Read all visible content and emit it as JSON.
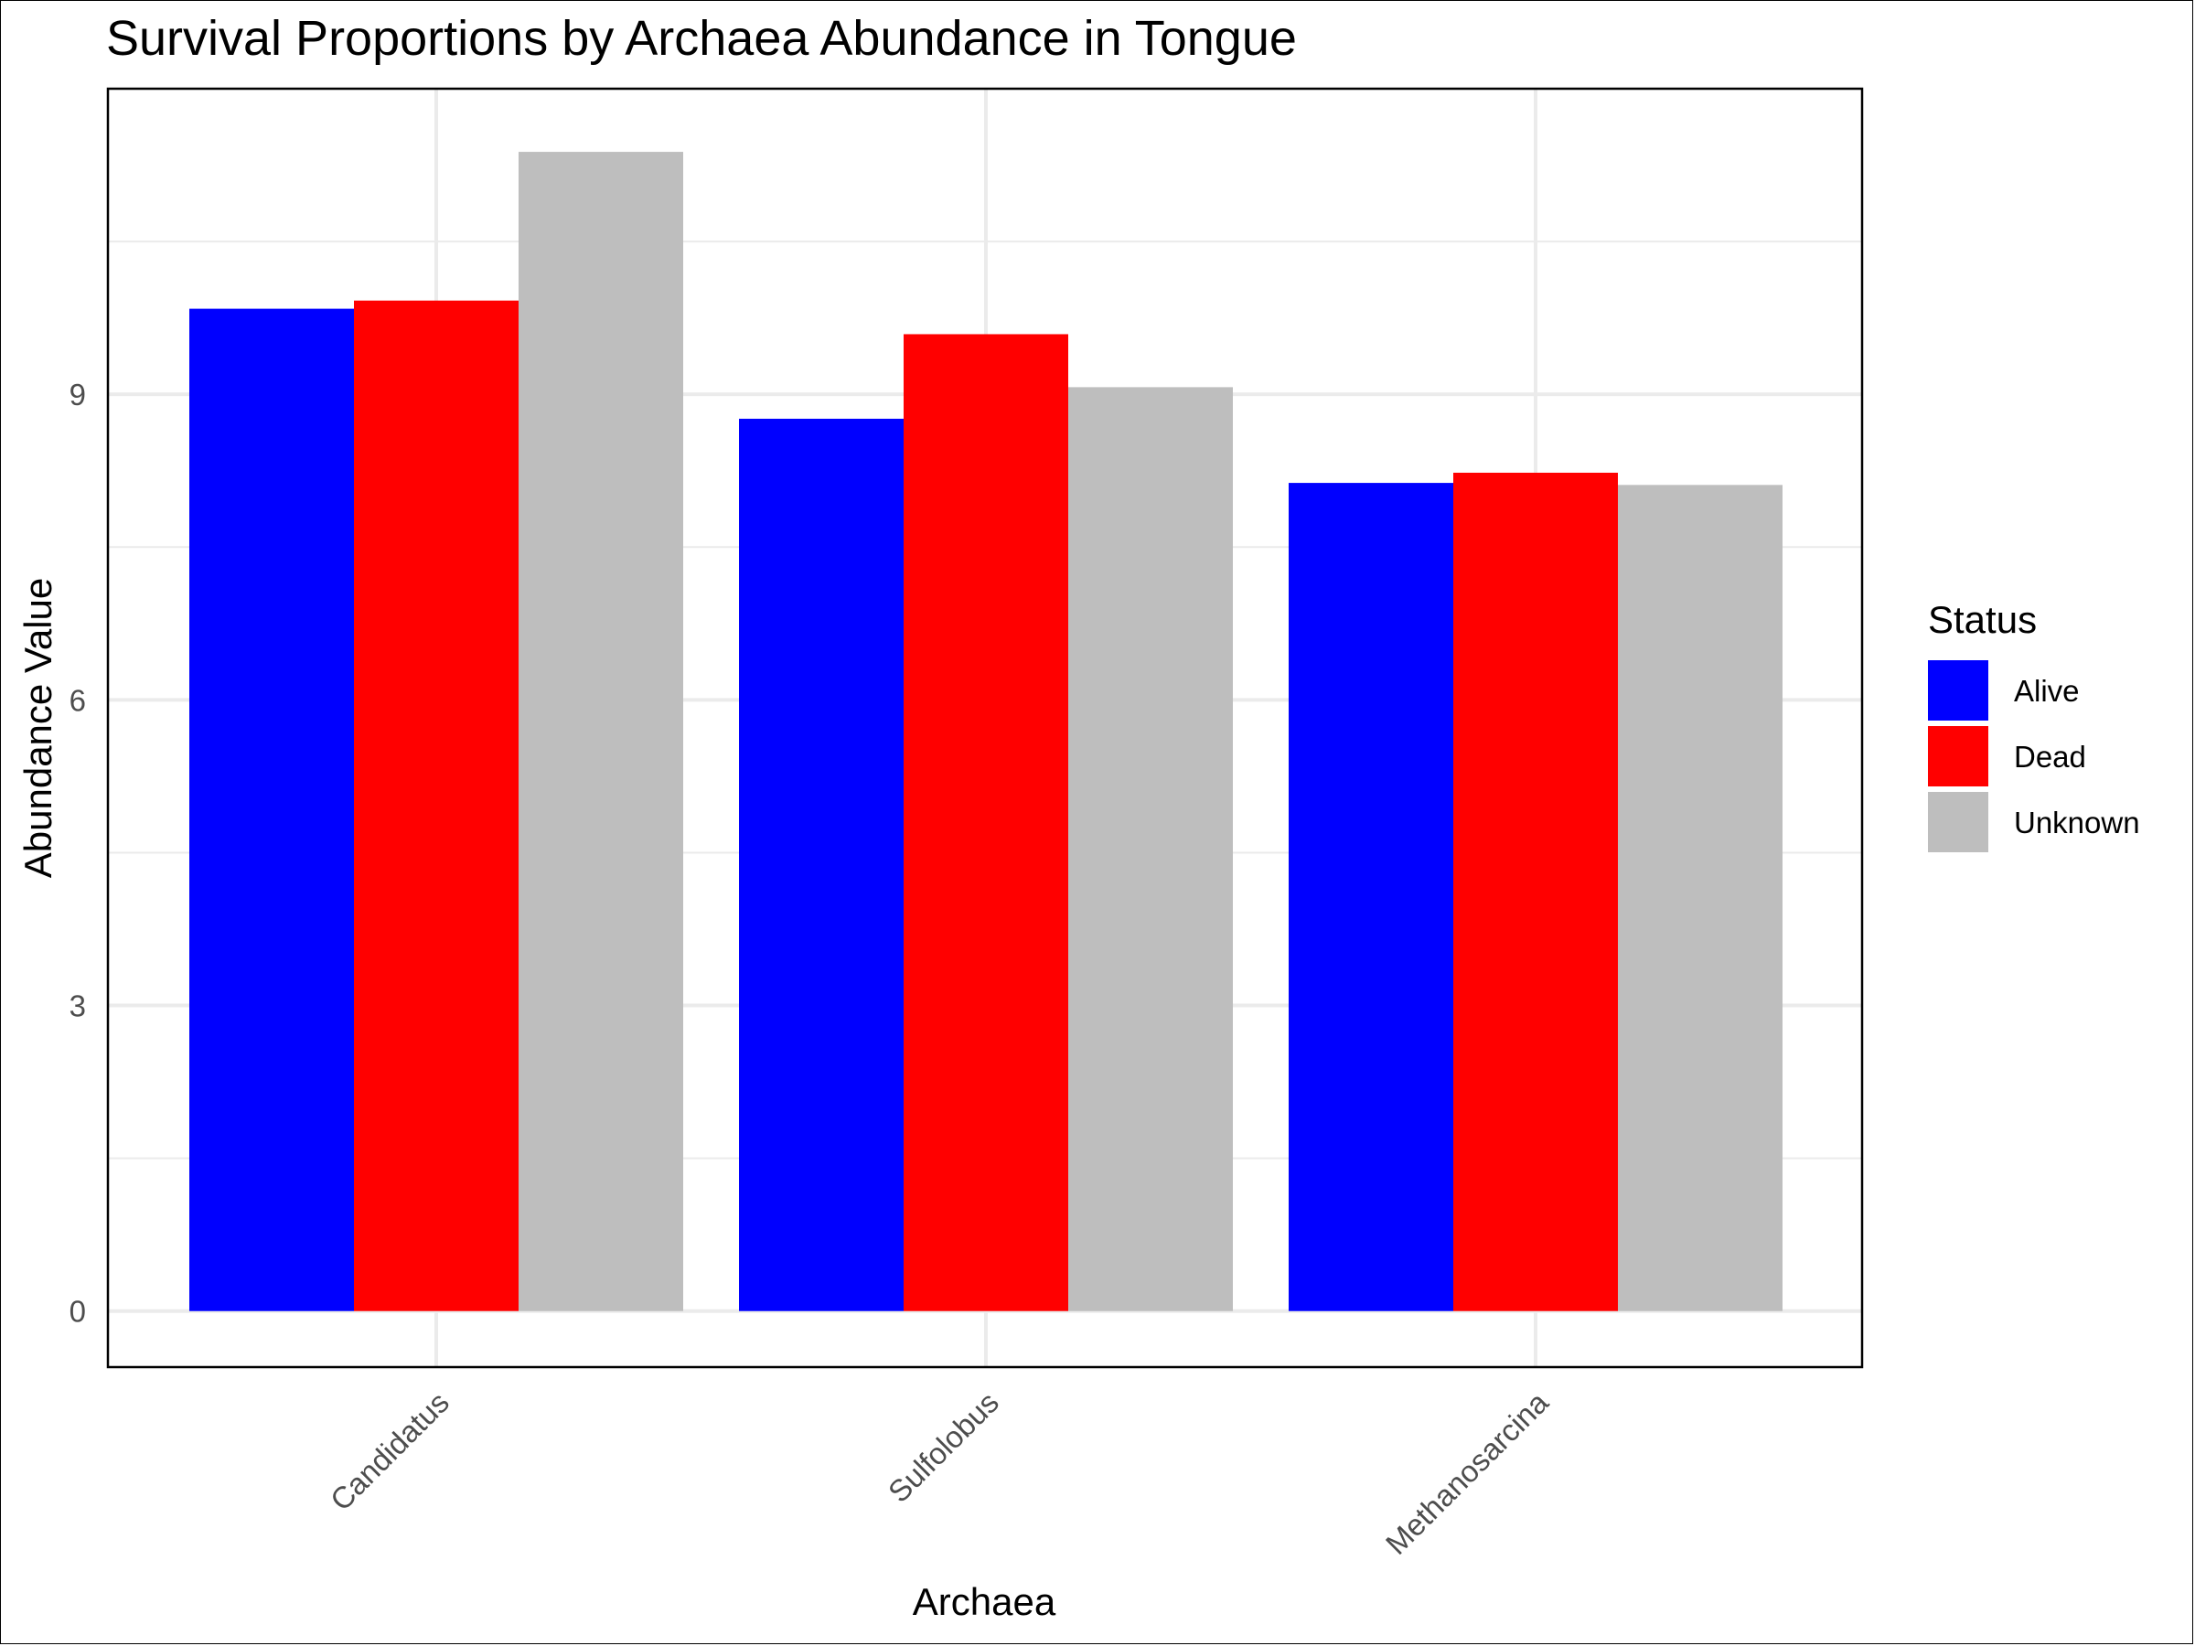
{
  "chart_data": {
    "type": "bar",
    "title": "Survival Proportions by Archaea Abundance in Tongue",
    "xlabel": "Archaea",
    "ylabel": "Abundance Value",
    "categories": [
      "Candidatus",
      "Sulfolobus",
      "Methanosarcina"
    ],
    "series": [
      {
        "name": "Alive",
        "color": "#0000FF",
        "values": [
          9.84,
          8.76,
          8.13
        ]
      },
      {
        "name": "Dead",
        "color": "#FF0000",
        "values": [
          9.92,
          9.59,
          8.23
        ]
      },
      {
        "name": "Unknown",
        "color": "#BEBEBE",
        "values": [
          11.38,
          9.07,
          8.11
        ]
      }
    ],
    "ylim": [
      -0.55,
      12.0
    ],
    "yticks": [
      0,
      3,
      6,
      9
    ],
    "yticks_labels": [
      "0",
      "3",
      "6",
      "9"
    ],
    "grid": true,
    "legend": {
      "title": "Status",
      "position": "right"
    }
  }
}
